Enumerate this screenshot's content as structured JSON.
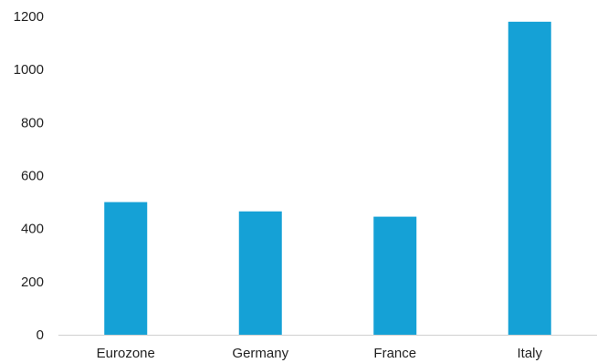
{
  "chart_data": {
    "type": "bar",
    "categories": [
      "Eurozone",
      "Germany",
      "France",
      "Italy"
    ],
    "values": [
      500,
      465,
      445,
      1180
    ],
    "ylim": [
      0,
      1200
    ],
    "yticks": [
      0,
      200,
      400,
      600,
      800,
      1000,
      1200
    ],
    "ytick_labels": [
      "0",
      "200",
      "400",
      "600",
      "800",
      "1000",
      "1200"
    ],
    "title": "",
    "xlabel": "",
    "ylabel": "",
    "grid": false,
    "legend": "none",
    "bar_color": "#15a1d6",
    "axis_color": "#d0d0d0"
  }
}
